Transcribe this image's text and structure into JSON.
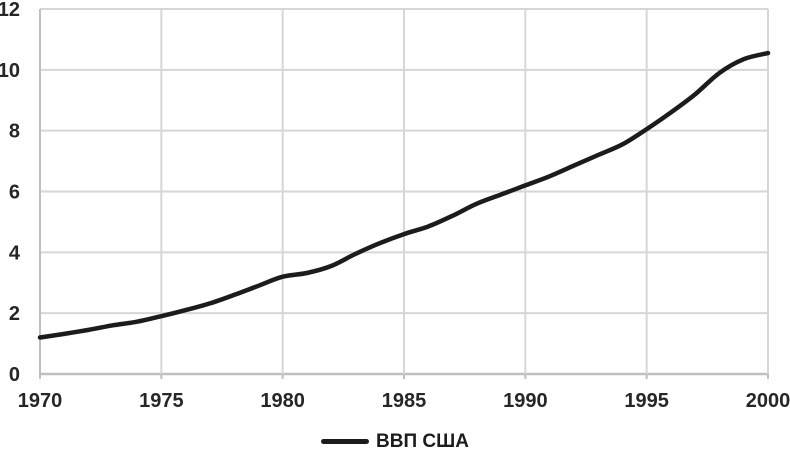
{
  "chart_data": {
    "type": "line",
    "title": "",
    "legend": "ВВП США",
    "legend_position": "bottom",
    "grid": true,
    "xlim": [
      1970,
      2000
    ],
    "ylim": [
      0,
      12
    ],
    "xticks": [
      1970,
      1975,
      1980,
      1985,
      1990,
      1995,
      2000
    ],
    "yticks": [
      0,
      2,
      4,
      6,
      8,
      10,
      12
    ],
    "x": [
      1970,
      1971,
      1972,
      1973,
      1974,
      1975,
      1976,
      1977,
      1978,
      1979,
      1980,
      1981,
      1982,
      1983,
      1984,
      1985,
      1986,
      1987,
      1988,
      1989,
      1990,
      1991,
      1992,
      1993,
      1994,
      1995,
      1996,
      1997,
      1998,
      1999,
      2000
    ],
    "series": [
      {
        "name": "ВВП США",
        "values": [
          1.2,
          1.32,
          1.45,
          1.6,
          1.72,
          1.9,
          2.1,
          2.32,
          2.6,
          2.9,
          3.2,
          3.32,
          3.55,
          3.95,
          4.3,
          4.6,
          4.85,
          5.2,
          5.6,
          5.9,
          6.2,
          6.5,
          6.85,
          7.2,
          7.55,
          8.05,
          8.6,
          9.2,
          9.9,
          10.35,
          10.55
        ]
      }
    ],
    "colors": {
      "line": "#1c1c1c",
      "grid": "#d6d6d6",
      "axis": "#bfbfbf",
      "label": "#262626",
      "background": "#ffffff"
    }
  }
}
